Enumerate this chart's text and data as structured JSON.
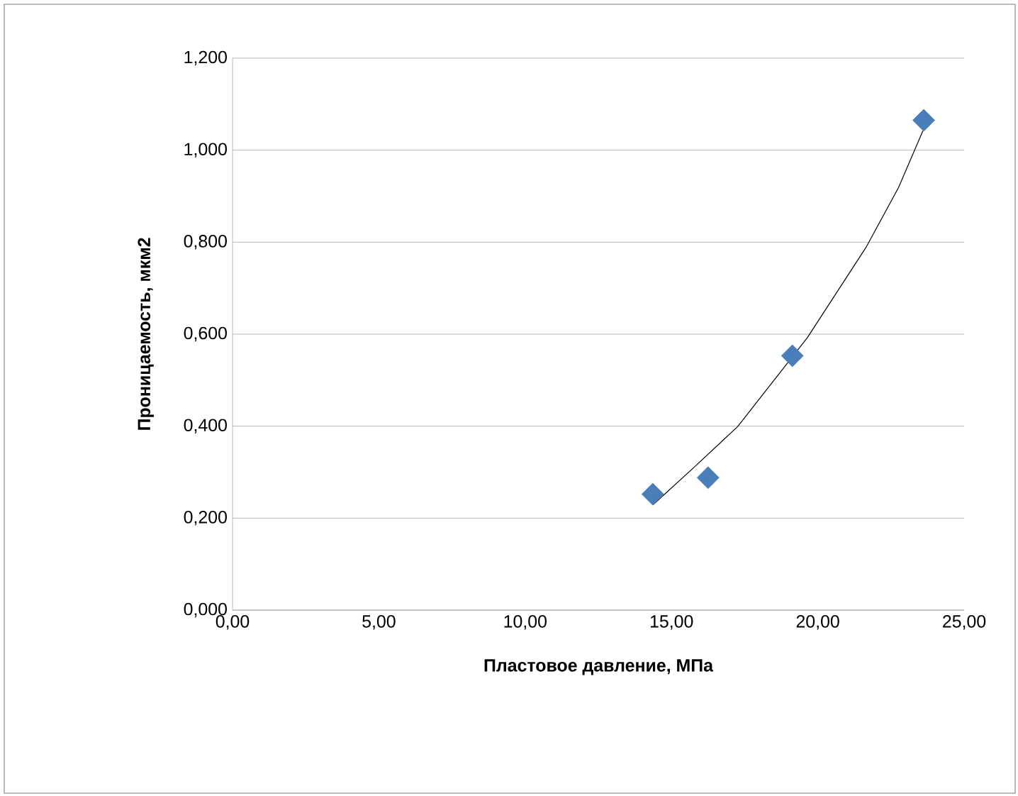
{
  "chart_data": {
    "type": "scatter",
    "xlabel": "Пластовое давление, МПа",
    "ylabel": "Проницаемость, мкм2",
    "xlim": [
      0,
      25
    ],
    "ylim": [
      0,
      1.2
    ],
    "xticks": [
      {
        "value": 0,
        "label": "0,00"
      },
      {
        "value": 5,
        "label": "5,00"
      },
      {
        "value": 10,
        "label": "10,00"
      },
      {
        "value": 15,
        "label": "15,00"
      },
      {
        "value": 20,
        "label": "20,00"
      },
      {
        "value": 25,
        "label": "25,00"
      }
    ],
    "yticks": [
      {
        "value": 0,
        "label": "0,000"
      },
      {
        "value": 0.2,
        "label": "0,200"
      },
      {
        "value": 0.4,
        "label": "0,400"
      },
      {
        "value": 0.6,
        "label": "0,600"
      },
      {
        "value": 0.8,
        "label": "0,800"
      },
      {
        "value": 1.0,
        "label": "1,000"
      },
      {
        "value": 1.2,
        "label": "1,200"
      }
    ],
    "grid": "y",
    "series": [
      {
        "color": "#4a7ebb",
        "marker": "diamond",
        "x": [
          14.36,
          16.25,
          19.13,
          23.62
        ],
        "values": [
          0.252,
          0.288,
          0.553,
          1.065
        ]
      },
      {
        "type": "line",
        "color": "#000000",
        "marker": "none",
        "line_style": "solid",
        "x": [
          14.37,
          15.78,
          17.26,
          19.64,
          21.66,
          22.76,
          23.59
        ],
        "values": [
          0.229,
          0.311,
          0.399,
          0.592,
          0.79,
          0.919,
          1.042
        ]
      }
    ]
  }
}
